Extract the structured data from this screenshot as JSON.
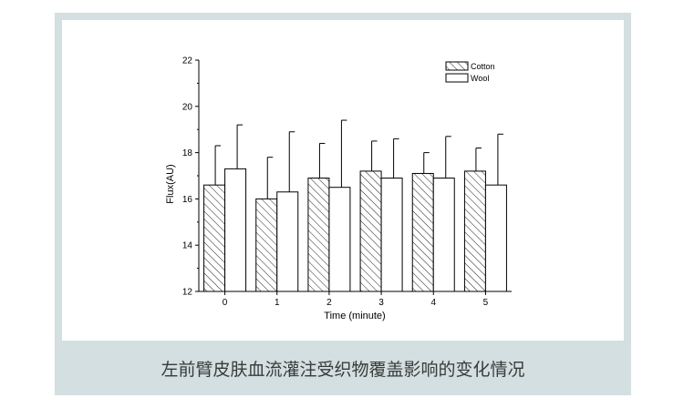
{
  "caption": "左前臂皮肤血流灌注受织物覆盖影响的变化情况",
  "chart_data": {
    "type": "bar",
    "xlabel": "Time (minute)",
    "ylabel": "Flux(AU)",
    "categories": [
      "0",
      "1",
      "2",
      "3",
      "4",
      "5"
    ],
    "ylim": [
      12,
      22
    ],
    "yticks": [
      "12",
      "14",
      "16",
      "18",
      "20",
      "22"
    ],
    "series": [
      {
        "name": "Cotton",
        "values": [
          16.6,
          16.0,
          16.9,
          17.2,
          17.1,
          17.2
        ],
        "error_top": [
          18.3,
          17.8,
          18.4,
          18.5,
          18.0,
          18.2
        ],
        "fill": "hatched"
      },
      {
        "name": "Wool",
        "values": [
          17.3,
          16.3,
          16.5,
          16.9,
          16.9,
          16.6
        ],
        "error_top": [
          19.2,
          18.9,
          19.4,
          18.6,
          18.7,
          18.8
        ],
        "fill": "white"
      }
    ],
    "legend_position": "top-right",
    "grid": false
  }
}
